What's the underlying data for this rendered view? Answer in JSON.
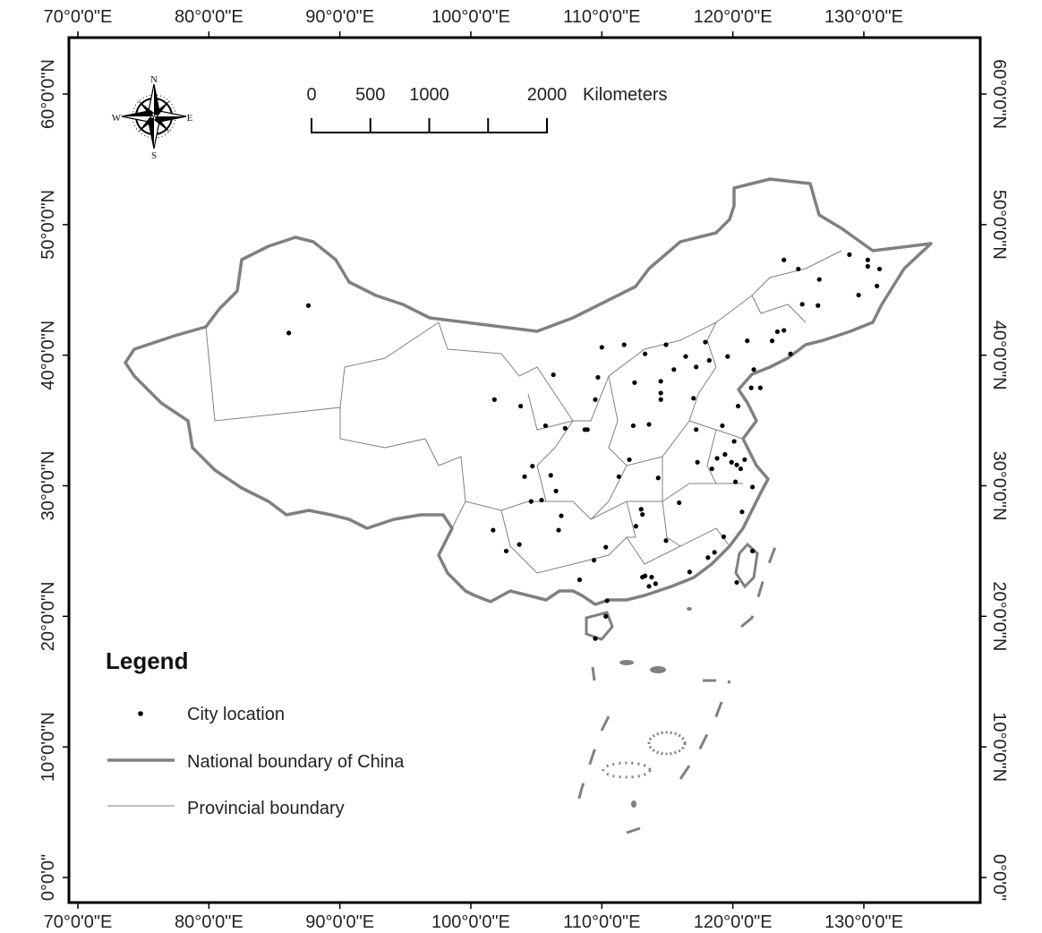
{
  "map": {
    "lon_labels": [
      {
        "value": 70,
        "label": "70°0'0\"E"
      },
      {
        "value": 80,
        "label": "80°0'0\"E"
      },
      {
        "value": 90,
        "label": "90°0'0\"E"
      },
      {
        "value": 100,
        "label": "100°0'0\"E"
      },
      {
        "value": 110,
        "label": "110°0'0\"E"
      },
      {
        "value": 120,
        "label": "120°0'0\"E"
      },
      {
        "value": 130,
        "label": "130°0'0\"E"
      }
    ],
    "lat_labels": [
      {
        "value": 60,
        "label": "60°0'0\"N"
      },
      {
        "value": 50,
        "label": "50°0'0\"N"
      },
      {
        "value": 40,
        "label": "40°0'0\"N"
      },
      {
        "value": 30,
        "label": "30°0'0\"N"
      },
      {
        "value": 20,
        "label": "20°0'0\"N"
      },
      {
        "value": 10,
        "label": "10°0'0\"N"
      },
      {
        "value": 0,
        "label": "0°0'0\""
      }
    ],
    "scale_bar": {
      "ticks": [
        0,
        500,
        1000,
        {
          "value": 1500,
          "label": null
        },
        2000
      ],
      "unit": "Kilometers"
    },
    "compass": {
      "north": "N",
      "south": "S",
      "east": "E",
      "west": "W"
    },
    "legend": {
      "title": "Legend",
      "items": [
        "City location",
        "National boundary of China",
        "Provincial boundary"
      ]
    },
    "cities": [
      [
        87.6,
        43.8
      ],
      [
        86.1,
        41.7
      ],
      [
        101.8,
        36.6
      ],
      [
        103.8,
        36.1
      ],
      [
        106.3,
        38.5
      ],
      [
        110.0,
        40.6
      ],
      [
        111.7,
        40.8
      ],
      [
        116.4,
        39.9
      ],
      [
        117.2,
        39.1
      ],
      [
        114.5,
        38.0
      ],
      [
        112.5,
        37.9
      ],
      [
        113.3,
        40.1
      ],
      [
        117.0,
        36.7
      ],
      [
        120.4,
        36.1
      ],
      [
        121.4,
        37.5
      ],
      [
        122.1,
        37.5
      ],
      [
        113.6,
        34.7
      ],
      [
        112.4,
        34.6
      ],
      [
        108.9,
        34.3
      ],
      [
        107.2,
        34.4
      ],
      [
        105.7,
        34.6
      ],
      [
        108.7,
        34.3
      ],
      [
        109.5,
        36.6
      ],
      [
        109.7,
        38.3
      ],
      [
        114.5,
        36.6
      ],
      [
        114.5,
        37.1
      ],
      [
        115.5,
        38.9
      ],
      [
        118.2,
        39.6
      ],
      [
        119.6,
        39.9
      ],
      [
        114.9,
        40.8
      ],
      [
        117.9,
        41.0
      ],
      [
        123.4,
        41.8
      ],
      [
        121.6,
        38.9
      ],
      [
        123.0,
        41.1
      ],
      [
        123.9,
        41.9
      ],
      [
        124.4,
        40.1
      ],
      [
        121.1,
        41.1
      ],
      [
        125.3,
        43.9
      ],
      [
        126.5,
        43.8
      ],
      [
        126.6,
        45.8
      ],
      [
        123.9,
        47.3
      ],
      [
        125.0,
        46.6
      ],
      [
        130.3,
        46.8
      ],
      [
        129.6,
        44.6
      ],
      [
        128.9,
        47.7
      ],
      [
        130.3,
        47.3
      ],
      [
        131.2,
        46.6
      ],
      [
        131.0,
        45.3
      ],
      [
        118.8,
        32.1
      ],
      [
        120.6,
        31.3
      ],
      [
        120.3,
        31.6
      ],
      [
        119.9,
        31.8
      ],
      [
        120.2,
        30.3
      ],
      [
        121.5,
        29.9
      ],
      [
        120.7,
        28.0
      ],
      [
        117.3,
        31.8
      ],
      [
        118.4,
        31.3
      ],
      [
        117.2,
        34.3
      ],
      [
        119.2,
        34.6
      ],
      [
        120.1,
        33.4
      ],
      [
        120.9,
        32.0
      ],
      [
        119.4,
        32.4
      ],
      [
        119.3,
        26.1
      ],
      [
        118.1,
        24.5
      ],
      [
        118.6,
        24.9
      ],
      [
        115.9,
        28.7
      ],
      [
        114.9,
        25.8
      ],
      [
        113.0,
        28.2
      ],
      [
        113.1,
        27.8
      ],
      [
        112.6,
        26.9
      ],
      [
        114.3,
        30.6
      ],
      [
        111.3,
        30.7
      ],
      [
        112.1,
        32.0
      ],
      [
        113.3,
        23.1
      ],
      [
        114.1,
        22.5
      ],
      [
        113.8,
        23.0
      ],
      [
        113.1,
        23.0
      ],
      [
        113.6,
        22.3
      ],
      [
        116.7,
        23.4
      ],
      [
        110.4,
        21.2
      ],
      [
        108.3,
        22.8
      ],
      [
        109.4,
        24.3
      ],
      [
        110.3,
        25.3
      ],
      [
        106.7,
        26.6
      ],
      [
        106.9,
        27.7
      ],
      [
        102.7,
        25.0
      ],
      [
        103.7,
        25.5
      ],
      [
        101.7,
        26.6
      ],
      [
        106.5,
        29.6
      ],
      [
        104.1,
        30.7
      ],
      [
        104.7,
        31.5
      ],
      [
        106.1,
        30.8
      ],
      [
        104.6,
        28.8
      ],
      [
        105.4,
        28.9
      ],
      [
        110.3,
        20.0
      ],
      [
        109.5,
        18.3
      ],
      [
        121.5,
        25.0
      ],
      [
        120.3,
        22.6
      ]
    ]
  }
}
